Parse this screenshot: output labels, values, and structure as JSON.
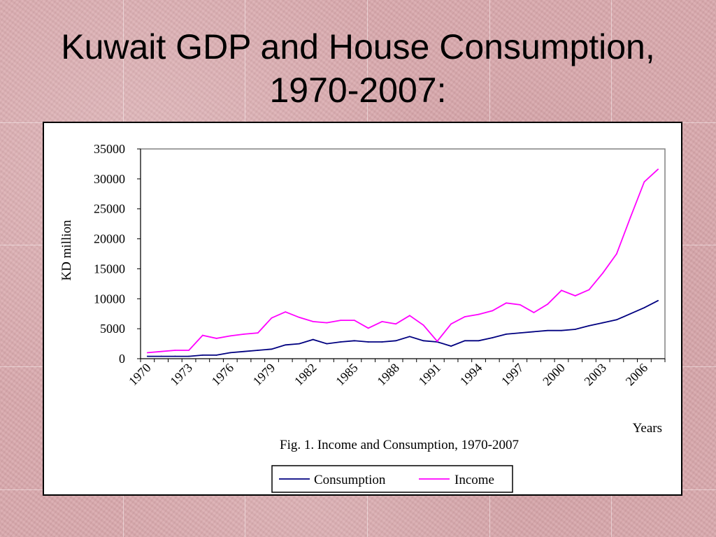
{
  "slide": {
    "title_line1": "Kuwait GDP and House Consumption,",
    "title_line2": "1970-2007:"
  },
  "chart_data": {
    "type": "line",
    "caption": "Fig. 1. Income and Consumption, 1970-2007",
    "xlabel": "Years",
    "ylabel": "KD million",
    "ylim": [
      0,
      35000
    ],
    "yticks": [
      0,
      5000,
      10000,
      15000,
      20000,
      25000,
      30000,
      35000
    ],
    "xticks": [
      1970,
      1973,
      1976,
      1979,
      1982,
      1985,
      1988,
      1991,
      1994,
      1997,
      2000,
      2003,
      2006
    ],
    "x": [
      1970,
      1971,
      1972,
      1973,
      1974,
      1975,
      1976,
      1977,
      1978,
      1979,
      1980,
      1981,
      1982,
      1983,
      1984,
      1985,
      1986,
      1987,
      1988,
      1989,
      1990,
      1991,
      1992,
      1993,
      1994,
      1995,
      1996,
      1997,
      1998,
      1999,
      2000,
      2001,
      2002,
      2003,
      2004,
      2005,
      2006,
      2007
    ],
    "grid": false,
    "legend_position": "bottom",
    "series": [
      {
        "name": "Consumption",
        "color": "#000080",
        "values": [
          400,
          400,
          400,
          400,
          600,
          600,
          1000,
          1200,
          1400,
          1600,
          2300,
          2500,
          3200,
          2500,
          2800,
          3000,
          2800,
          2800,
          3000,
          3700,
          3000,
          2800,
          2100,
          3000,
          3000,
          3500,
          4100,
          4300,
          4500,
          4700,
          4700,
          4900,
          5500,
          6000,
          6500,
          7500,
          8500,
          9700
        ]
      },
      {
        "name": "Income",
        "color": "#ff00ff",
        "values": [
          1000,
          1200,
          1400,
          1400,
          3900,
          3400,
          3800,
          4100,
          4300,
          6800,
          7800,
          6900,
          6200,
          6000,
          6400,
          6400,
          5100,
          6200,
          5800,
          7200,
          5600,
          2900,
          5800,
          7000,
          7400,
          8000,
          9300,
          9000,
          7700,
          9100,
          11400,
          10500,
          11500,
          14300,
          17500,
          23600,
          29500,
          31600
        ]
      }
    ]
  }
}
